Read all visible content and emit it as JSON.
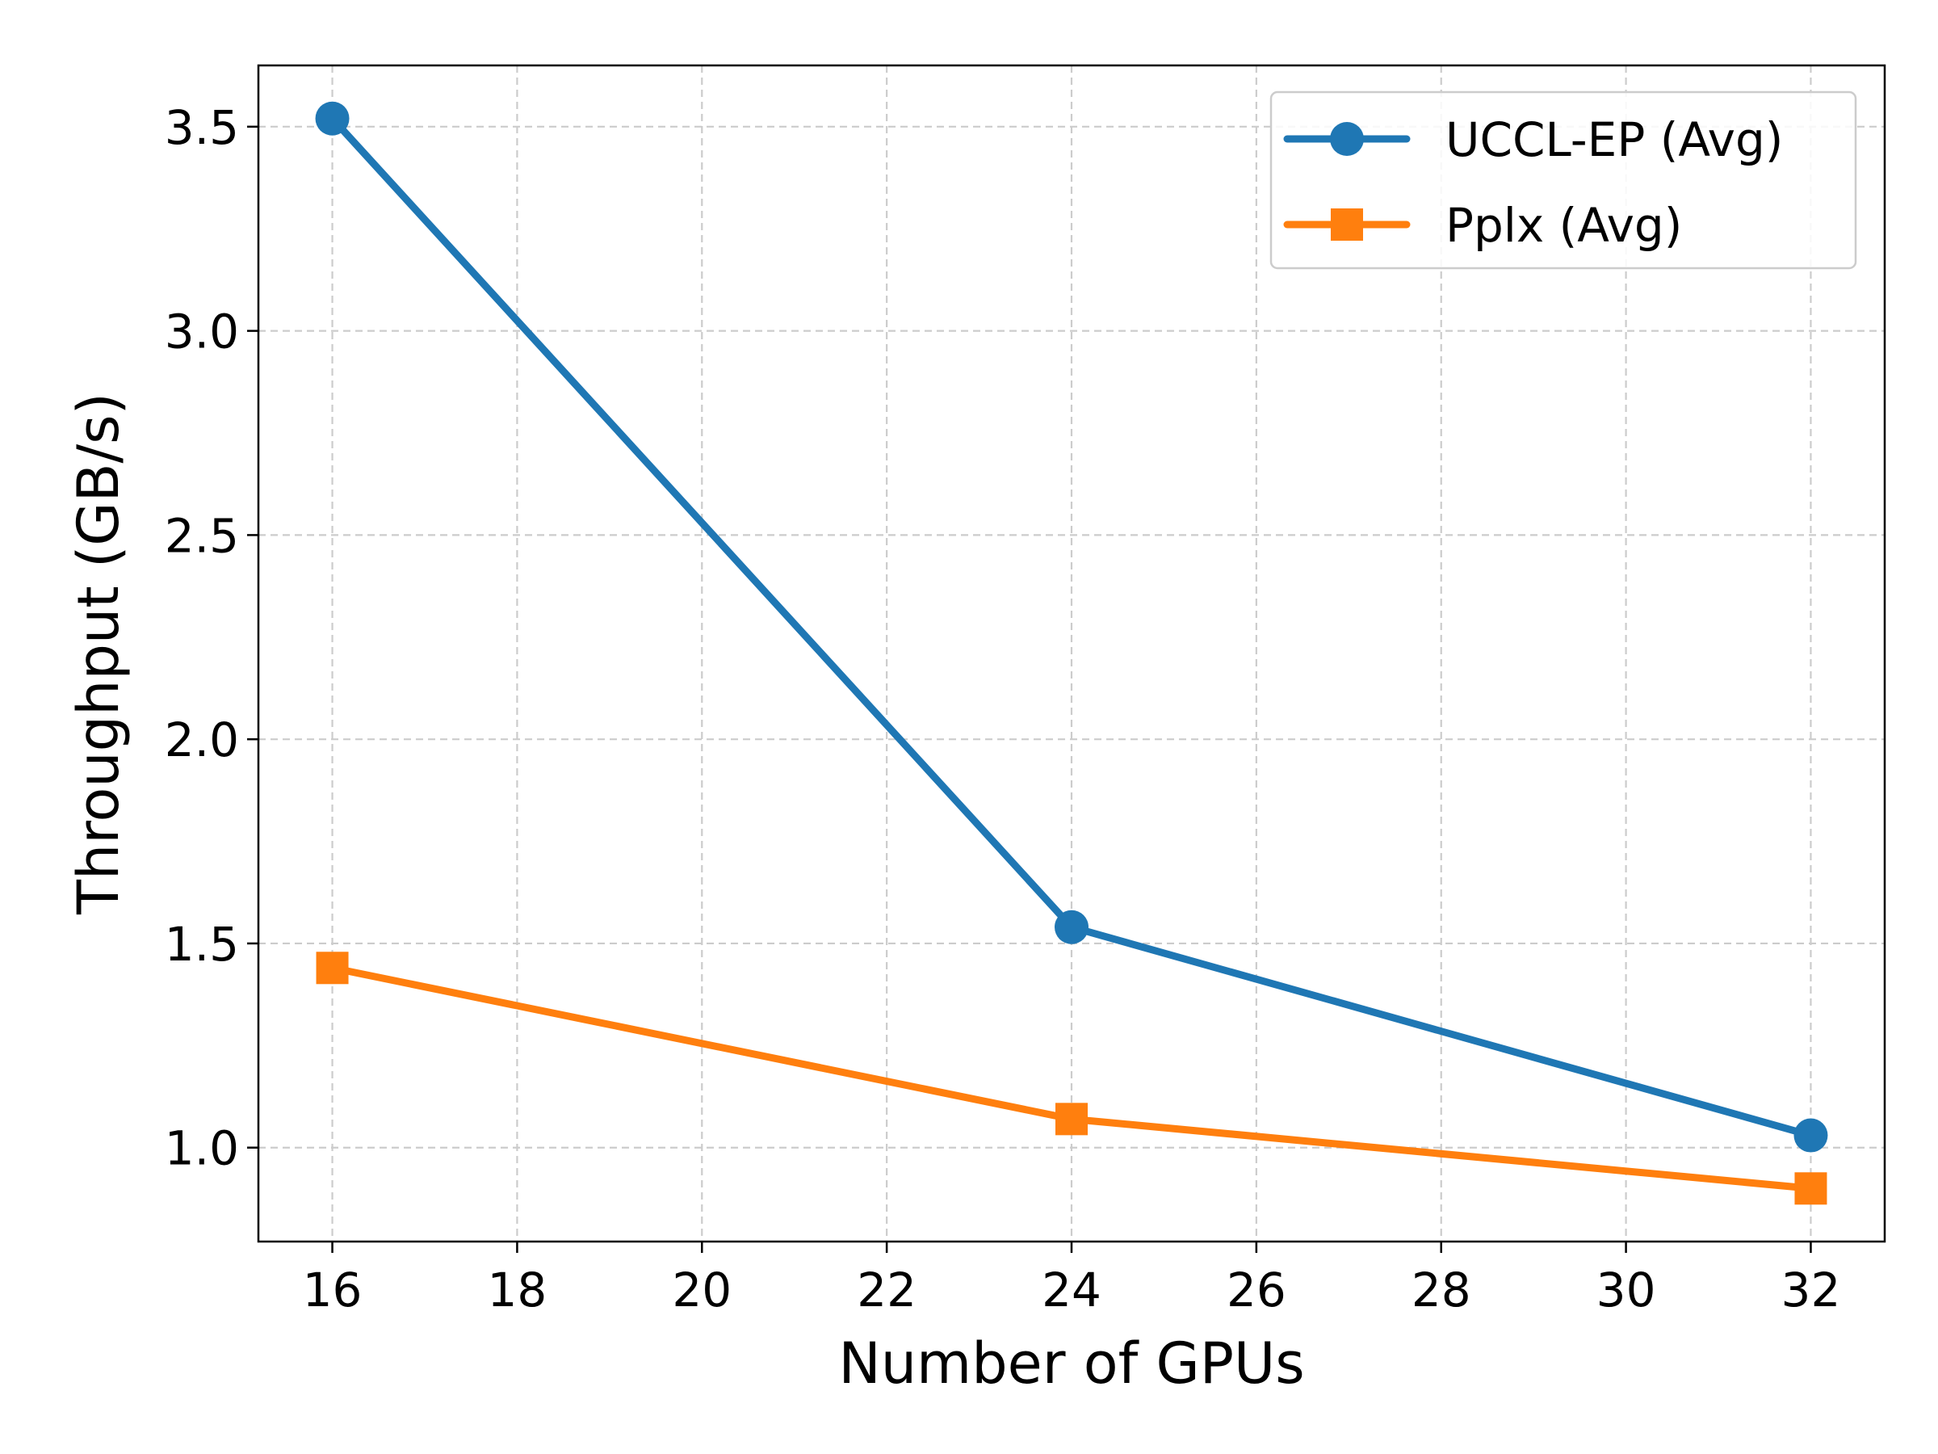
{
  "chart_data": {
    "type": "line",
    "title": "",
    "xlabel": "Number of GPUs",
    "ylabel": "Throughput (GB/s)",
    "x": [
      16,
      24,
      32
    ],
    "xlim": [
      15.2,
      32.8
    ],
    "ylim": [
      0.77,
      3.65
    ],
    "xticks": [
      16,
      18,
      20,
      22,
      24,
      26,
      28,
      30,
      32
    ],
    "yticks": [
      1.0,
      1.5,
      2.0,
      2.5,
      3.0,
      3.5
    ],
    "xtick_labels": [
      "16",
      "18",
      "20",
      "22",
      "24",
      "26",
      "28",
      "30",
      "32"
    ],
    "ytick_labels": [
      "1.0",
      "1.5",
      "2.0",
      "2.5",
      "3.0",
      "3.5"
    ],
    "grid": true,
    "legend_position": "top-right",
    "series": [
      {
        "name": "UCCL-EP (Avg)",
        "values": [
          3.52,
          1.54,
          1.03
        ],
        "color": "#1f77b4",
        "marker": "circle"
      },
      {
        "name": "Pplx (Avg)",
        "values": [
          1.44,
          1.07,
          0.9
        ],
        "color": "#ff7f0e",
        "marker": "square"
      }
    ]
  }
}
